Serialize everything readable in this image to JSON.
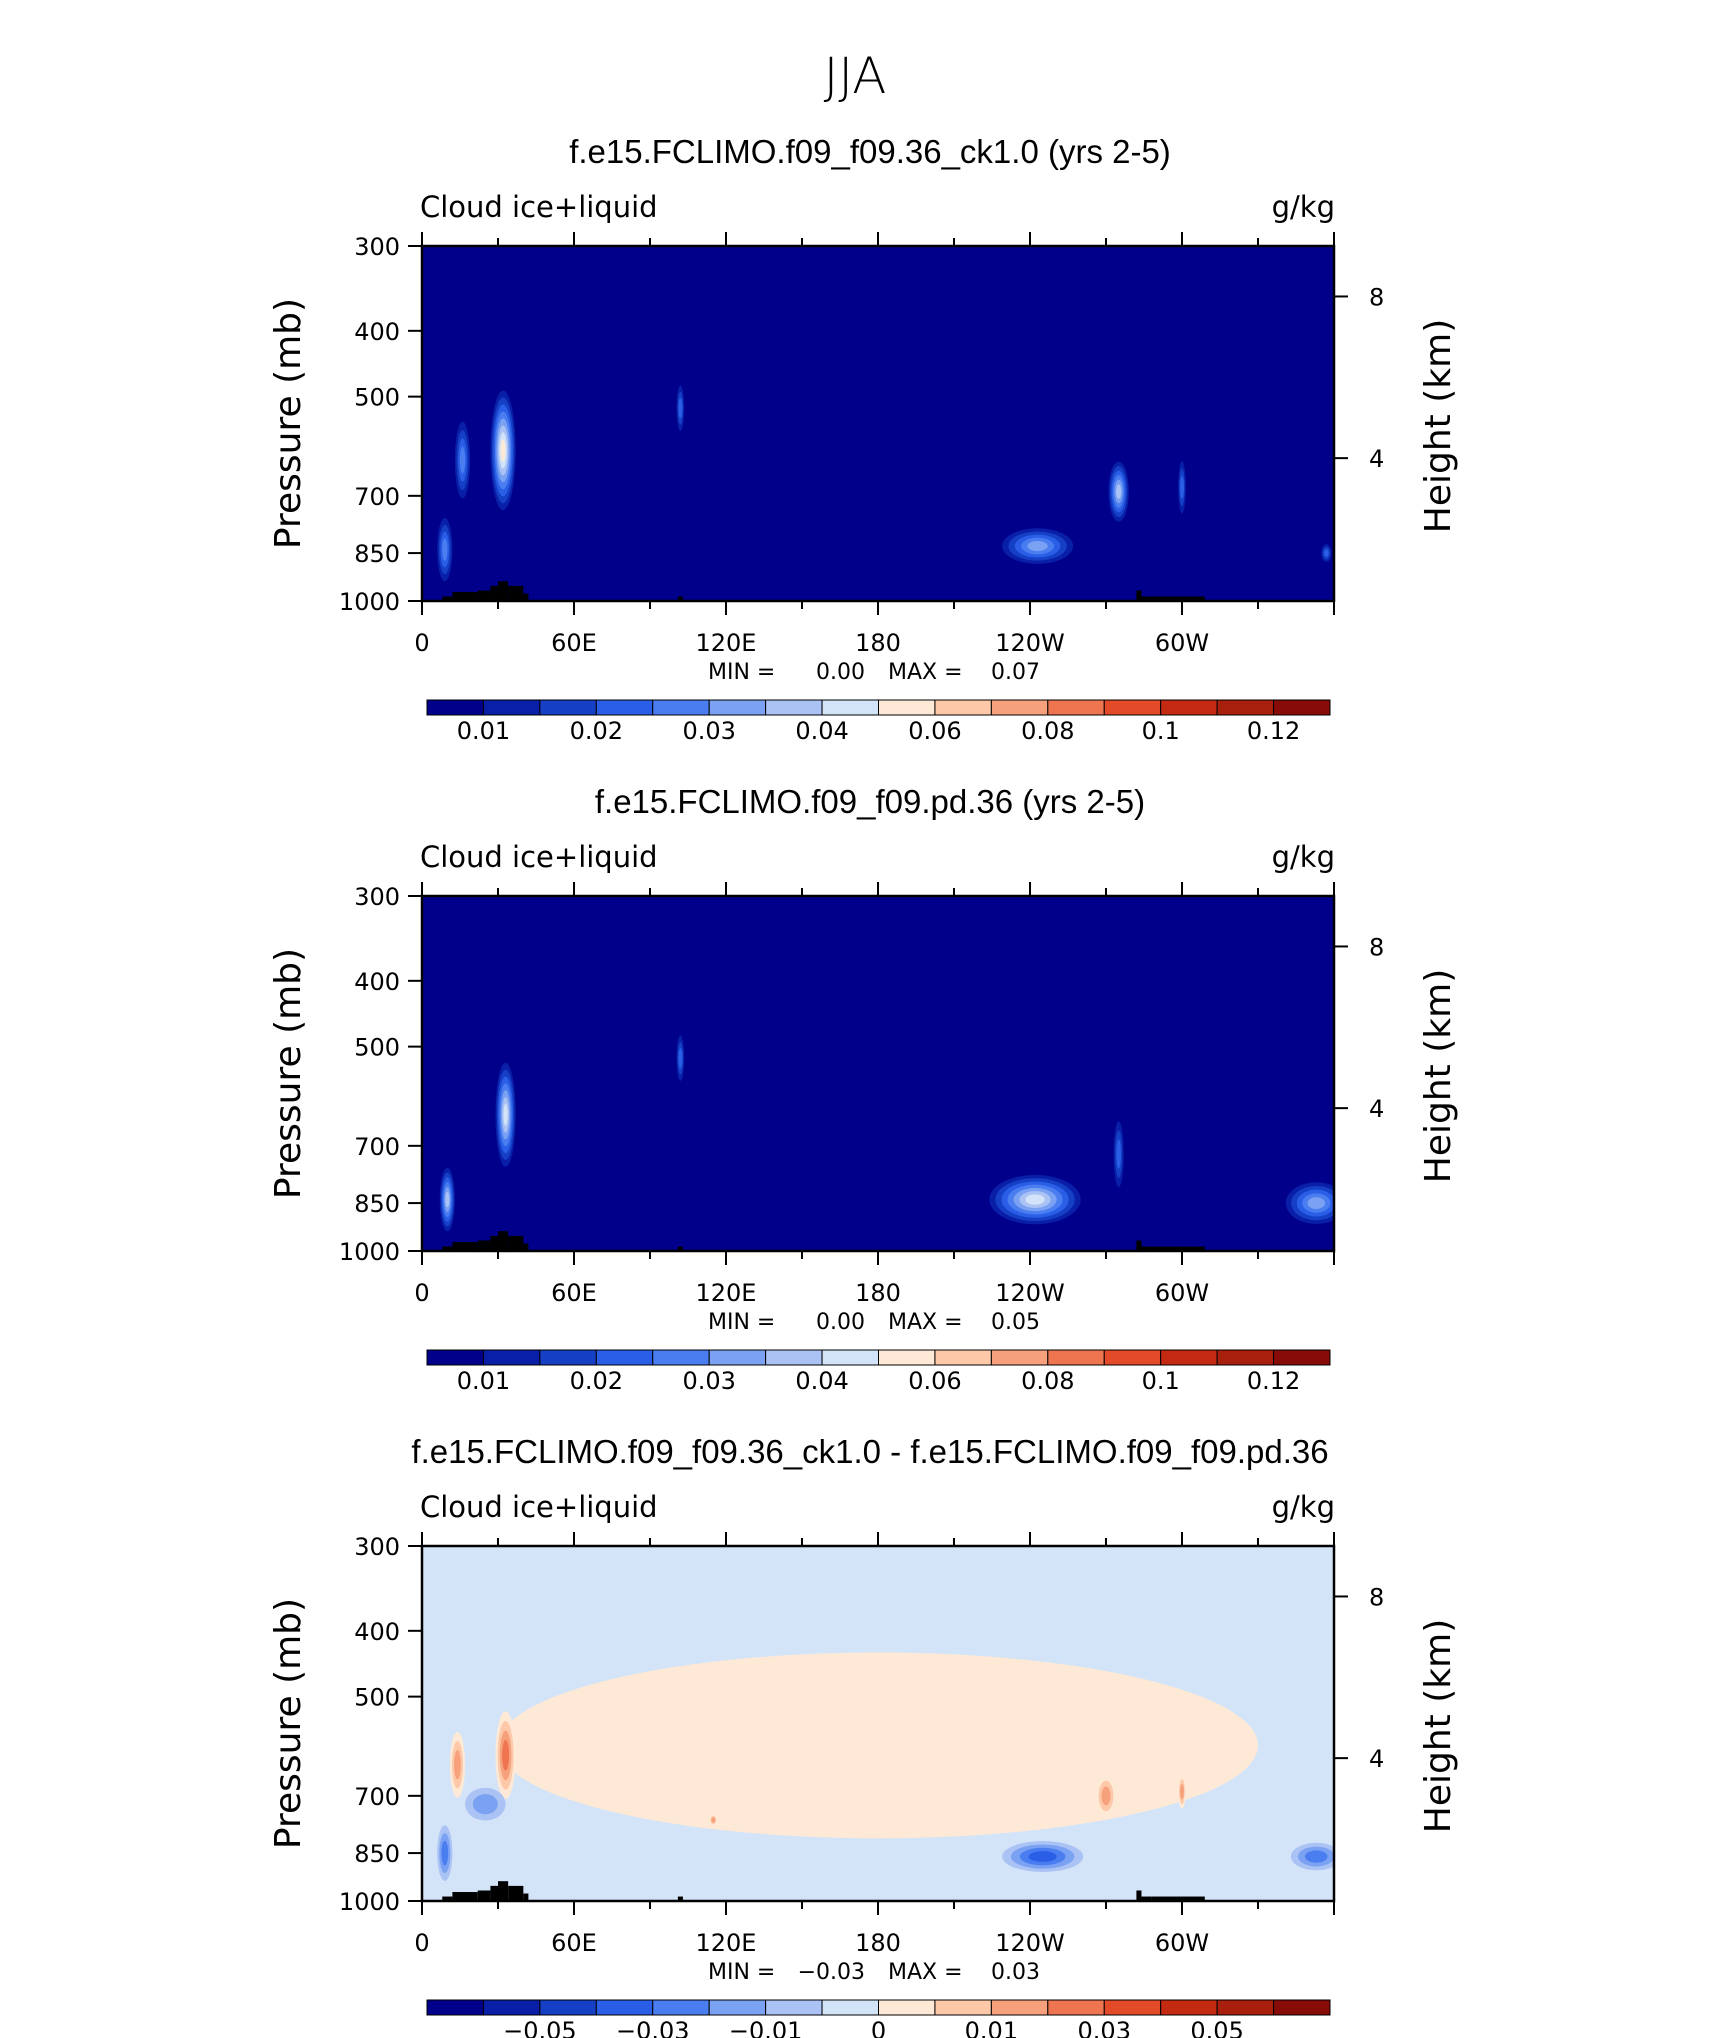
{
  "title": "JJA",
  "chart_data": [
    {
      "type": "heatmap",
      "title": "f.e15.FCLIMO.f09_f09.36_ck1.0 (yrs 2-5)",
      "left_label": "Cloud ice+liquid",
      "units": "g/kg",
      "ylabel": "Pressure (mb)",
      "ylabel_right": "Height (km)",
      "x_ticks": [
        "0",
        "60E",
        "120E",
        "180",
        "120W",
        "60W"
      ],
      "y_ticks": [
        "300",
        "400",
        "500",
        "700",
        "850",
        "1000"
      ],
      "y_ticks_right": [
        "8",
        "4"
      ],
      "stats": {
        "min_label": "MIN =",
        "min": "0.00",
        "max_label": "MAX =",
        "max": "0.07"
      },
      "colorbar_labels": [
        "0.01",
        "0.02",
        "0.03",
        "0.04",
        "0.06",
        "0.08",
        "0.1",
        "0.12"
      ],
      "colors": [
        "#00008b",
        "#0a1fa8",
        "#1540c6",
        "#2a5ee6",
        "#4a7df0",
        "#7ba2f2",
        "#aac2f4",
        "#d4e4f8",
        "#fde9d6",
        "#fcc8a8",
        "#f7a07c",
        "#ef7550",
        "#e24a28",
        "#c42a12",
        "#a81f0d",
        "#870c07"
      ],
      "background_index": 0,
      "blobs": [
        {
          "lon": 32,
          "p": 600,
          "wlon": 5,
          "hp": 120,
          "level": 8
        },
        {
          "lon": 16,
          "p": 620,
          "wlon": 3,
          "hp": 80,
          "level": 4
        },
        {
          "lon": 9,
          "p": 840,
          "wlon": 3,
          "hp": 90,
          "level": 4
        },
        {
          "lon": 102,
          "p": 520,
          "wlon": 1.5,
          "hp": 40,
          "level": 3
        },
        {
          "lon": 243,
          "p": 830,
          "wlon": 14,
          "hp": 50,
          "level": 5
        },
        {
          "lon": 275,
          "p": 690,
          "wlon": 4,
          "hp": 70,
          "level": 6
        },
        {
          "lon": 300,
          "p": 680,
          "wlon": 1.5,
          "hp": 60,
          "level": 3
        },
        {
          "lon": 357,
          "p": 850,
          "wlon": 2,
          "hp": 25,
          "level": 3
        }
      ]
    },
    {
      "type": "heatmap",
      "title": "f.e15.FCLIMO.f09_f09.pd.36 (yrs 2-5)",
      "left_label": "Cloud ice+liquid",
      "units": "g/kg",
      "ylabel": "Pressure (mb)",
      "ylabel_right": "Height (km)",
      "x_ticks": [
        "0",
        "60E",
        "120E",
        "180",
        "120W",
        "60W"
      ],
      "y_ticks": [
        "300",
        "400",
        "500",
        "700",
        "850",
        "1000"
      ],
      "y_ticks_right": [
        "8",
        "4"
      ],
      "stats": {
        "min_label": "MIN =",
        "min": "0.00",
        "max_label": "MAX =",
        "max": "0.05"
      },
      "colorbar_labels": [
        "0.01",
        "0.02",
        "0.03",
        "0.04",
        "0.06",
        "0.08",
        "0.1",
        "0.12"
      ],
      "colors": [
        "#00008b",
        "#0a1fa8",
        "#1540c6",
        "#2a5ee6",
        "#4a7df0",
        "#7ba2f2",
        "#aac2f4",
        "#d4e4f8",
        "#fde9d6",
        "#fcc8a8",
        "#f7a07c",
        "#ef7550",
        "#e24a28",
        "#c42a12",
        "#a81f0d",
        "#870c07"
      ],
      "background_index": 0,
      "blobs": [
        {
          "lon": 33,
          "p": 630,
          "wlon": 4,
          "hp": 110,
          "level": 7
        },
        {
          "lon": 10,
          "p": 840,
          "wlon": 3,
          "hp": 90,
          "level": 6
        },
        {
          "lon": 102,
          "p": 520,
          "wlon": 1.5,
          "hp": 40,
          "level": 3
        },
        {
          "lon": 242,
          "p": 840,
          "wlon": 18,
          "hp": 70,
          "level": 7
        },
        {
          "lon": 275,
          "p": 720,
          "wlon": 2,
          "hp": 80,
          "level": 3
        },
        {
          "lon": 353,
          "p": 850,
          "wlon": 12,
          "hp": 60,
          "level": 5
        }
      ]
    },
    {
      "type": "heatmap",
      "title": "f.e15.FCLIMO.f09_f09.36_ck1.0 - f.e15.FCLIMO.f09_f09.pd.36",
      "left_label": "Cloud ice+liquid",
      "units": "g/kg",
      "ylabel": "Pressure (mb)",
      "ylabel_right": "Height (km)",
      "x_ticks": [
        "0",
        "60E",
        "120E",
        "180",
        "120W",
        "60W"
      ],
      "y_ticks": [
        "300",
        "400",
        "500",
        "700",
        "850",
        "1000"
      ],
      "y_ticks_right": [
        "8",
        "4"
      ],
      "stats": {
        "min_label": "MIN =",
        "min": "−0.03",
        "max_label": "MAX =",
        "max": "0.03"
      },
      "colorbar_labels": [
        "−0.05",
        "−0.03",
        "−0.01",
        "0",
        "0.01",
        "0.03",
        "0.05"
      ],
      "colors": [
        "#00008b",
        "#0a1fa8",
        "#1540c6",
        "#2a5ee6",
        "#4a7df0",
        "#7ba2f2",
        "#aac2f4",
        "#d4e4f8",
        "#fde9d6",
        "#fcc8a8",
        "#f7a07c",
        "#ef7550",
        "#e24a28",
        "#c42a12",
        "#a81f0d",
        "#870c07"
      ],
      "background_index": 7,
      "blobs": [
        {
          "lon": 180,
          "p": 590,
          "wlon": 150,
          "hp": 180,
          "level": 8
        },
        {
          "lon": 33,
          "p": 610,
          "wlon": 4,
          "hp": 90,
          "level": 11
        },
        {
          "lon": 14,
          "p": 630,
          "wlon": 3,
          "hp": 70,
          "level": 10
        },
        {
          "lon": 25,
          "p": 720,
          "wlon": 8,
          "hp": 40,
          "level": 5
        },
        {
          "lon": 9,
          "p": 850,
          "wlon": 3,
          "hp": 80,
          "level": 4
        },
        {
          "lon": 245,
          "p": 860,
          "wlon": 16,
          "hp": 45,
          "level": 3
        },
        {
          "lon": 270,
          "p": 700,
          "wlon": 4,
          "hp": 50,
          "level": 10
        },
        {
          "lon": 300,
          "p": 690,
          "wlon": 1.5,
          "hp": 40,
          "level": 10
        },
        {
          "lon": 353,
          "p": 860,
          "wlon": 10,
          "hp": 40,
          "level": 4
        },
        {
          "lon": 115,
          "p": 760,
          "wlon": 1.5,
          "hp": 15,
          "level": 10
        }
      ]
    }
  ]
}
